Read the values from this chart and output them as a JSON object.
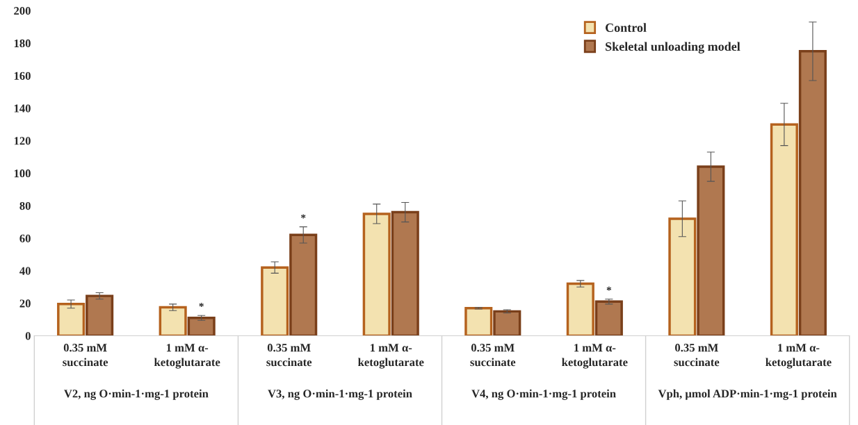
{
  "chart_data": {
    "type": "bar",
    "categories": [
      "0.35 mM\nsuccinate",
      "1 mM α-\nketoglutarate",
      "0.35 mM\nsuccinate",
      "1 mM α-\nketoglutarate",
      "0.35 mM\nsuccinate",
      "1 mM α-\nketoglutarate",
      "0.35 mM\nsuccinate",
      "1 mM α-\nketoglutarate"
    ],
    "series": [
      {
        "name": "Control",
        "color": "#f3e2b0",
        "values": [
          19.5,
          17.5,
          42,
          75,
          17,
          32,
          72,
          130
        ],
        "errors": [
          2.5,
          2,
          3.5,
          6,
          0.5,
          2,
          11,
          13
        ]
      },
      {
        "name": "Skeletal unloading model",
        "color": "#b07850",
        "values": [
          24.5,
          11,
          62,
          76,
          15,
          21,
          104,
          175
        ],
        "errors": [
          2,
          1.5,
          5,
          6,
          1,
          1.5,
          9,
          18
        ],
        "value_labels": [
          null,
          "*",
          "*",
          null,
          null,
          "*",
          null,
          null
        ]
      }
    ],
    "ylim": [
      0,
      200
    ],
    "yticks": [
      0,
      20,
      40,
      60,
      80,
      100,
      120,
      140,
      160,
      180,
      200
    ],
    "grid": false,
    "legend": "top right",
    "annotations": [
      "V2, ng O·min-1·mg-1 protein",
      "V3, ng O·min-1·mg-1 protein",
      "V4, ng O·min-1·mg-1 protein",
      "Vph, μmol ADP·min-1·mg-1 protein"
    ]
  }
}
